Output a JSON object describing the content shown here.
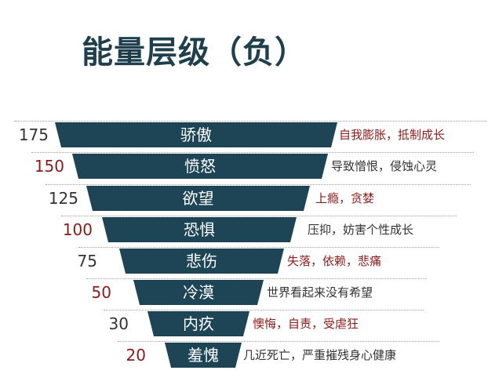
{
  "title": "能量层级（负）",
  "levels": [
    {
      "value": "175",
      "label": "骄傲",
      "description": "自我膨胀，抵制成长"
    },
    {
      "value": "150",
      "label": "愤怒",
      "description": "导致憎恨，侵蚀心灵"
    },
    {
      "value": "125",
      "label": "欲望",
      "description": "上瘾，贪婪"
    },
    {
      "value": "100",
      "label": "恐惧",
      "description": "压抑，妨害个性成长"
    },
    {
      "value": "75",
      "label": "悲伤",
      "description": "失落，依赖，悲痛"
    },
    {
      "value": "50",
      "label": "冷漠",
      "description": "世界看起来没有希望"
    },
    {
      "value": "30",
      "label": "内疚",
      "description": "懊悔，自责，受虐狂"
    },
    {
      "value": "20",
      "label": "羞愧",
      "description": "几近死亡，严重摧残身心健康"
    }
  ],
  "colors": {
    "bar": "#1d4555",
    "title": "#1f3f4c",
    "value_dark": "#333333",
    "value_red": "#8b1a1a",
    "desc_dark": "#333333",
    "desc_red": "#8b1a1a"
  }
}
